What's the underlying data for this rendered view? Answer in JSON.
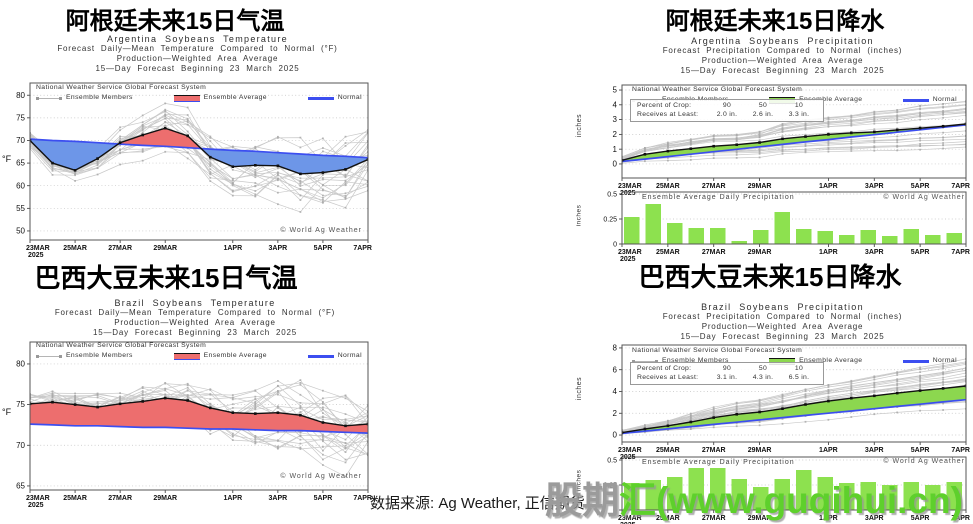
{
  "copyright": "© World Ag Weather",
  "daily_title": "Ensemble Average Daily Precipitation",
  "legend": {
    "line1": "National Weather Service Global Forecast System",
    "members": "Ensemble Members",
    "average": "Ensemble Average",
    "normal": "Normal"
  },
  "footer": {
    "source": "数据来源: Ag Weather, 正信期货"
  },
  "watermark": {
    "prefix": "股期",
    "suffix": "汇(www.guqihui.cn)"
  },
  "chart_data": [
    {
      "type": "line",
      "title_cn": "阿根廷未来15日气温",
      "title": "Argentina Soybeans Temperature",
      "sub1": "Forecast Daily—Mean Temperature Compared to Normal (°F)",
      "sub2": "Production—Weighted Area Average",
      "sub3": "15—Day Forecast Beginning 23 March 2025",
      "ylabel": "°F",
      "ylim": [
        48,
        82.7
      ],
      "yticks": [
        50,
        55,
        60,
        65,
        70,
        75,
        80
      ],
      "xticks": [
        "23MAR",
        "25MAR",
        "27MAR",
        "29MAR",
        "1APR",
        "3APR",
        "5APR",
        "7APR"
      ],
      "x_year": "2025",
      "ensemble_average": [
        70.0,
        65.0,
        63.4,
        66.0,
        69.5,
        71.2,
        72.7,
        71.0,
        66.3,
        64.2,
        64.5,
        64.4,
        62.6,
        62.9,
        63.6,
        65.8
      ],
      "normal": [
        70.3,
        70.0,
        69.8,
        69.5,
        69.2,
        68.9,
        68.7,
        68.4,
        68.1,
        67.8,
        67.6,
        67.3,
        67.0,
        66.7,
        66.5,
        66.2
      ],
      "colors": {
        "above": "#ed6e6e",
        "below": "#6d96e8",
        "normal": "#3c4ef0",
        "average": "#111111",
        "band": "#ed6e6e",
        "band_edge_bottom": "#3c4ef0"
      },
      "members": {
        "count": 26,
        "seed": 13,
        "spread_start": 1.5,
        "spread_end": 7.5,
        "mode": "walk"
      }
    },
    {
      "type": "line+bar",
      "title_cn": "阿根廷未来15日降水",
      "title": "Argentina Soybeans Precipitation",
      "sub1": "Forecast Precipitation Compared to Normal (inches)",
      "sub2": "Production—Weighted Area Average",
      "sub3": "15—Day Forecast Beginning 23 March 2025",
      "ylabel": "inches",
      "ylim": [
        -0.95,
        5.34
      ],
      "yticks": [
        0,
        1,
        2,
        3,
        4,
        5
      ],
      "xticks": [
        "23MAR",
        "25MAR",
        "27MAR",
        "29MAR",
        "1APR",
        "3APR",
        "5APR",
        "7APR"
      ],
      "x_year": "2025",
      "crop_box": {
        "row1": "Percent of Crop:",
        "row2": "Receives at Least:",
        "percent": [
          "90",
          "50",
          "10"
        ],
        "amounts": [
          "2.0 in.",
          "2.6 in.",
          "3.3 in."
        ]
      },
      "ensemble_average": [
        0.25,
        0.65,
        0.87,
        1.03,
        1.2,
        1.3,
        1.45,
        1.7,
        1.85,
        2.0,
        2.1,
        2.17,
        2.3,
        2.42,
        2.55,
        2.7
      ],
      "normal": [
        0.17,
        0.33,
        0.5,
        0.66,
        0.83,
        0.99,
        1.16,
        1.32,
        1.49,
        1.65,
        1.82,
        1.98,
        2.15,
        2.31,
        2.48,
        2.65
      ],
      "daily_bars": [
        0.27,
        0.4,
        0.21,
        0.16,
        0.16,
        0.03,
        0.14,
        0.32,
        0.15,
        0.13,
        0.09,
        0.14,
        0.08,
        0.15,
        0.09,
        0.11
      ],
      "bars_yticks": [
        "0",
        "0.25",
        "0.5"
      ],
      "colors": {
        "above": "#8cd74f",
        "below": null,
        "normal": "#3c4ef0",
        "average": "#111111",
        "bar": "#8de14f",
        "band": "#8cd74f",
        "band_edge_bottom": "#111111"
      },
      "members": {
        "count": 22,
        "seed": 29,
        "mode": "cum",
        "g_base": 0.45,
        "g_span": 1.15,
        "noise": 0.9
      }
    },
    {
      "type": "line",
      "title_cn": "巴西大豆未来15日气温",
      "title": "Brazil Soybeans Temperature",
      "sub1": "Forecast Daily—Mean Temperature Compared to Normal (°F)",
      "sub2": "Production—Weighted Area Average",
      "sub3": "15—Day Forecast Beginning 23 March 2025",
      "ylabel": "°F",
      "ylim": [
        64.5,
        82.7
      ],
      "yticks": [
        65,
        70,
        75,
        80
      ],
      "xticks": [
        "23MAR",
        "25MAR",
        "27MAR",
        "29MAR",
        "1APR",
        "3APR",
        "5APR",
        "7APR"
      ],
      "x_year": "2025",
      "ensemble_average": [
        75.1,
        75.3,
        75.0,
        74.7,
        75.1,
        75.4,
        75.8,
        75.5,
        74.6,
        74.0,
        73.9,
        74.0,
        73.7,
        72.8,
        72.4,
        72.6
      ],
      "normal": [
        72.6,
        72.5,
        72.4,
        72.4,
        72.3,
        72.2,
        72.2,
        72.1,
        72.0,
        72.0,
        71.9,
        71.8,
        71.8,
        71.7,
        71.6,
        71.5
      ],
      "colors": {
        "above": "#ed6e6e",
        "below": "#6d96e8",
        "normal": "#3c4ef0",
        "average": "#111111",
        "band": "#ed6e6e",
        "band_edge_bottom": "#3c4ef0"
      },
      "members": {
        "count": 26,
        "seed": 47,
        "spread_start": 1.2,
        "spread_end": 4.5,
        "mode": "walk"
      }
    },
    {
      "type": "line+bar",
      "title_cn": "巴西大豆未来15日降水",
      "title": "Brazil Soybeans Precipitation",
      "sub1": "Forecast Precipitation Compared to Normal (inches)",
      "sub2": "Production—Weighted Area Average",
      "sub3": "15—Day Forecast Beginning 23 March 2025",
      "ylabel": "inches",
      "ylim": [
        -0.64,
        8.27
      ],
      "yticks": [
        0,
        2,
        4,
        6,
        8
      ],
      "xticks": [
        "23MAR",
        "25MAR",
        "27MAR",
        "29MAR",
        "1APR",
        "3APR",
        "5APR",
        "7APR"
      ],
      "x_year": "2025",
      "crop_box": {
        "row1": "Percent of Crop:",
        "row2": "Receives at Least:",
        "percent": [
          "90",
          "50",
          "10"
        ],
        "amounts": [
          "3.1 in.",
          "4.3 in.",
          "6.5 in."
        ]
      },
      "ensemble_average": [
        0.22,
        0.55,
        0.85,
        1.2,
        1.6,
        1.9,
        2.12,
        2.42,
        2.8,
        3.12,
        3.38,
        3.6,
        3.85,
        4.08,
        4.28,
        4.5
      ],
      "normal": [
        0.15,
        0.36,
        0.56,
        0.77,
        0.98,
        1.18,
        1.39,
        1.6,
        1.8,
        2.01,
        2.21,
        2.42,
        2.63,
        2.83,
        3.04,
        3.25
      ],
      "daily_bars": [
        0.27,
        0.3,
        0.33,
        0.42,
        0.42,
        0.31,
        0.23,
        0.31,
        0.4,
        0.33,
        0.27,
        0.28,
        0.25,
        0.28,
        0.25,
        0.28
      ],
      "bars_yticks": [
        "0",
        "0.25",
        "0.5"
      ],
      "colors": {
        "above": "#8cd74f",
        "below": null,
        "normal": "#3c4ef0",
        "average": "#111111",
        "bar": "#8de14f",
        "band": "#8cd74f",
        "band_edge_bottom": "#111111"
      },
      "members": {
        "count": 26,
        "seed": 61,
        "mode": "cum",
        "g_base": 0.55,
        "g_span": 0.85,
        "noise": 0.8
      }
    }
  ]
}
